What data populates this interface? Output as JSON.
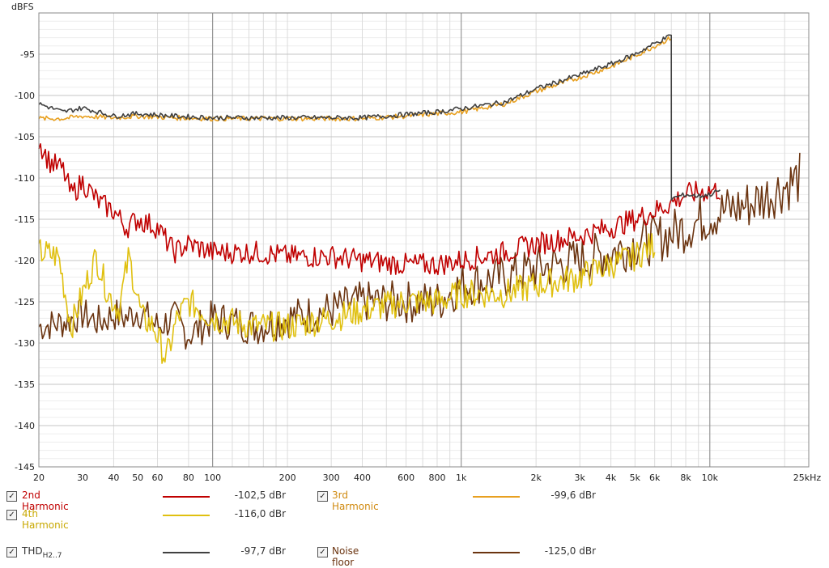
{
  "chart_data": {
    "type": "line",
    "ylabel": "dBFS",
    "xscale": "log",
    "xlim": [
      20,
      25000
    ],
    "ylim": [
      -145,
      -90
    ],
    "grid": true,
    "y_ticks": [
      -95,
      -100,
      -105,
      -110,
      -115,
      -120,
      -125,
      -130,
      -135,
      -140,
      -145
    ],
    "x_ticks": [
      {
        "v": 20,
        "label": "20"
      },
      {
        "v": 30,
        "label": "30"
      },
      {
        "v": 40,
        "label": "40"
      },
      {
        "v": 50,
        "label": "50"
      },
      {
        "v": 60,
        "label": "60"
      },
      {
        "v": 80,
        "label": "80"
      },
      {
        "v": 100,
        "label": "100"
      },
      {
        "v": 200,
        "label": "200"
      },
      {
        "v": 300,
        "label": "300"
      },
      {
        "v": 400,
        "label": "400"
      },
      {
        "v": 600,
        "label": "600"
      },
      {
        "v": 800,
        "label": "800"
      },
      {
        "v": 1000,
        "label": "1k"
      },
      {
        "v": 2000,
        "label": "2k"
      },
      {
        "v": 3000,
        "label": "3k"
      },
      {
        "v": 4000,
        "label": "4k"
      },
      {
        "v": 5000,
        "label": "5k"
      },
      {
        "v": 6000,
        "label": "6k"
      },
      {
        "v": 8000,
        "label": "8k"
      },
      {
        "v": 10000,
        "label": "10k"
      },
      {
        "v": 25000,
        "label": "25kHz"
      }
    ],
    "series": [
      {
        "name": "Noise floor",
        "color": "#6b3410",
        "noise": 2.4,
        "x": [
          20,
          25,
          30,
          35,
          40,
          45,
          50,
          60,
          70,
          80,
          90,
          100,
          150,
          200,
          300,
          400,
          600,
          800,
          1000,
          1500,
          2000,
          3000,
          4000,
          5000,
          6000,
          8000,
          10000,
          15000,
          20000,
          23000
        ],
        "y": [
          -128,
          -127.5,
          -126.5,
          -127.5,
          -126.5,
          -127,
          -126,
          -128,
          -127,
          -129,
          -128,
          -127,
          -128,
          -127,
          -126,
          -125,
          -125,
          -125,
          -123,
          -122,
          -121,
          -120,
          -119,
          -118,
          -117.5,
          -116,
          -114.5,
          -113,
          -111,
          -110
        ]
      },
      {
        "name": "4th Harmonic",
        "color": "#e0c010",
        "noise": 1.8,
        "x": [
          20,
          24,
          27,
          30,
          34,
          38,
          42,
          46,
          52,
          58,
          65,
          72,
          80,
          100,
          150,
          200,
          300,
          400,
          600,
          800,
          1000,
          1500,
          2000,
          3000,
          4000,
          5000,
          6000
        ],
        "y": [
          -119,
          -119.5,
          -128,
          -124,
          -119.5,
          -124,
          -126,
          -119.5,
          -127,
          -128,
          -132,
          -127,
          -125,
          -127,
          -128,
          -128,
          -127,
          -126,
          -125,
          -125,
          -124,
          -124,
          -123,
          -122,
          -120.5,
          -119.5,
          -118
        ]
      },
      {
        "name": "2nd Harmonic",
        "color": "#c00000",
        "noise": 1.4,
        "x": [
          20,
          22,
          25,
          27,
          30,
          35,
          40,
          45,
          50,
          60,
          70,
          80,
          100,
          150,
          200,
          300,
          400,
          600,
          800,
          1000,
          1500,
          2000,
          3000,
          4000,
          5000,
          6000,
          7000,
          8000,
          10000,
          11000
        ],
        "y": [
          -105.5,
          -108,
          -109,
          -112,
          -110.5,
          -113,
          -114,
          -116,
          -115,
          -116,
          -119,
          -118,
          -119,
          -119,
          -119.5,
          -119.5,
          -120,
          -120.5,
          -120.5,
          -120,
          -119,
          -118,
          -117,
          -116,
          -115,
          -114,
          -113,
          -112,
          -111.5,
          -111.5
        ]
      },
      {
        "name": "3rd Harmonic",
        "color": "#e8a020",
        "noise": 0.3,
        "x": [
          20,
          25,
          30,
          40,
          50,
          70,
          100,
          150,
          200,
          300,
          400,
          600,
          800,
          1000,
          1500,
          2000,
          3000,
          4000,
          5000,
          6000,
          7000
        ],
        "y": [
          -102.8,
          -102.8,
          -102.5,
          -102.7,
          -102.5,
          -102.7,
          -102.8,
          -102.8,
          -102.8,
          -102.8,
          -102.8,
          -102.5,
          -102.2,
          -102,
          -101,
          -99.5,
          -97.8,
          -96.5,
          -95.2,
          -94,
          -93
        ]
      },
      {
        "name": "THD",
        "color": "#404040",
        "noise": 0.3,
        "x": [
          20,
          25,
          30,
          40,
          50,
          70,
          100,
          150,
          200,
          300,
          400,
          600,
          800,
          1000,
          1500,
          2000,
          3000,
          4000,
          5000,
          6000,
          7000,
          7001,
          8000,
          9000,
          10000,
          11000
        ],
        "y": [
          -101,
          -102,
          -101.5,
          -102.5,
          -102.2,
          -102.5,
          -102.7,
          -102.7,
          -102.7,
          -102.7,
          -102.7,
          -102.3,
          -102,
          -101.6,
          -100.8,
          -99.2,
          -97.5,
          -96.2,
          -95,
          -93.7,
          -92.7,
          -112.5,
          -112,
          -112.2,
          -112,
          -111.5
        ]
      }
    ],
    "legend": [
      {
        "name": "2nd Harmonic",
        "value": "-102,5 dBr",
        "color": "#c00000",
        "checked": "✓"
      },
      {
        "name": "3rd Harmonic",
        "value": "-99,6 dBr",
        "color": "#e8a020",
        "checked": "✓"
      },
      {
        "name": "4th Harmonic",
        "value": "-116,0 dBr",
        "color": "#e0c010",
        "checked": "✓"
      },
      {
        "name": "THD",
        "sub": "H2..7",
        "value": "-97,7 dBr",
        "color": "#404040",
        "checked": "✓"
      },
      {
        "name": "Noise floor",
        "value": "-125,0 dBr",
        "color": "#6b3410",
        "checked": "✓"
      }
    ]
  }
}
